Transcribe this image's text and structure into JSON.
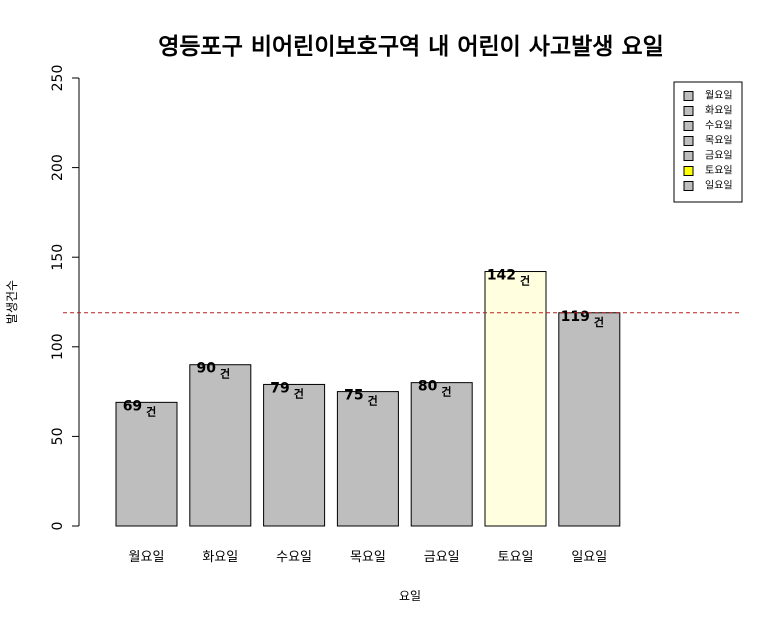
{
  "chart_data": {
    "type": "bar",
    "title": "영등포구 비어린이보호구역 내 어린이 사고발생 요일",
    "xlabel": "요일",
    "ylabel": "발생건수",
    "categories": [
      "월요일",
      "화요일",
      "수요일",
      "목요일",
      "금요일",
      "토요일",
      "일요일"
    ],
    "values": [
      69,
      90,
      79,
      75,
      80,
      142,
      119
    ],
    "value_unit": "건",
    "bar_colors": [
      "#bebebe",
      "#bebebe",
      "#bebebe",
      "#bebebe",
      "#bebebe",
      "#ffffe0",
      "#bebebe"
    ],
    "ylim": [
      0,
      250
    ],
    "yticks": [
      0,
      50,
      100,
      150,
      200,
      250
    ],
    "reference_line": {
      "value": 119,
      "color": "#b22222",
      "style": "dashed"
    },
    "legend": {
      "position": "top-right",
      "entries": [
        "월요일",
        "화요일",
        "수요일",
        "목요일",
        "금요일",
        "토요일",
        "일요일"
      ],
      "colors": [
        "#bebebe",
        "#bebebe",
        "#bebebe",
        "#bebebe",
        "#bebebe",
        "#ffff00",
        "#bebebe"
      ]
    },
    "grid": false
  }
}
